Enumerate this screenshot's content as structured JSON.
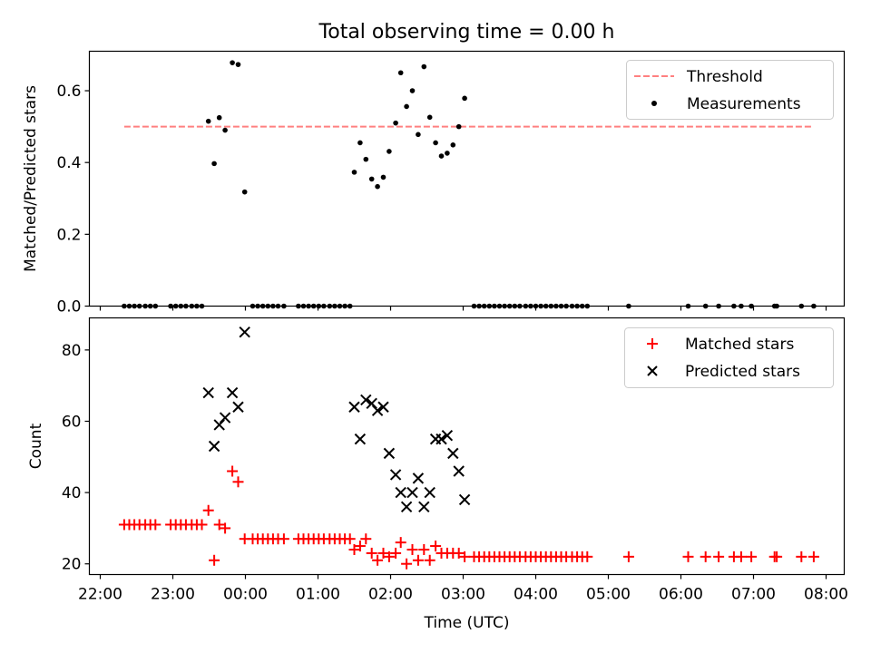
{
  "figure": {
    "title": "Total observing time = 0.00 h"
  },
  "chart_data": [
    {
      "type": "scatter",
      "ylabel": "Matched/Predicted stars",
      "xlabel": "",
      "xlim": [
        -0.15,
        10.25
      ],
      "ylim": [
        0.0,
        0.71
      ],
      "x_ticks": [
        0,
        1,
        2,
        3,
        4,
        5,
        6,
        7,
        8,
        9,
        10
      ],
      "x_tick_labels": [
        "22:00",
        "23:00",
        "00:00",
        "01:00",
        "02:00",
        "03:00",
        "04:00",
        "05:00",
        "06:00",
        "07:00",
        "08:00"
      ],
      "y_ticks": [
        0.0,
        0.2,
        0.4,
        0.6
      ],
      "y_tick_labels": [
        "0.0",
        "0.2",
        "0.4",
        "0.6"
      ],
      "legend_position": "top-right",
      "threshold": {
        "name": "Threshold",
        "value": 0.5,
        "x_range": [
          0.33,
          9.83
        ],
        "color": "#ff8080"
      },
      "series": [
        {
          "name": "Measurements",
          "color": "#000000",
          "marker": "dot",
          "points": [
            [
              0.33,
              0
            ],
            [
              0.4,
              0
            ],
            [
              0.47,
              0
            ],
            [
              0.54,
              0
            ],
            [
              0.62,
              0
            ],
            [
              0.69,
              0
            ],
            [
              0.76,
              0
            ],
            [
              0.97,
              0
            ],
            [
              1.04,
              0
            ],
            [
              1.11,
              0
            ],
            [
              1.18,
              0
            ],
            [
              1.26,
              0
            ],
            [
              1.33,
              0
            ],
            [
              1.4,
              0
            ],
            [
              1.49,
              0.515
            ],
            [
              1.57,
              0.397
            ],
            [
              1.64,
              0.525
            ],
            [
              1.72,
              0.49
            ],
            [
              1.82,
              0.678
            ],
            [
              1.9,
              0.673
            ],
            [
              1.99,
              0.318
            ],
            [
              2.1,
              0
            ],
            [
              2.17,
              0
            ],
            [
              2.24,
              0
            ],
            [
              2.31,
              0
            ],
            [
              2.38,
              0
            ],
            [
              2.45,
              0
            ],
            [
              2.53,
              0
            ],
            [
              2.73,
              0
            ],
            [
              2.8,
              0
            ],
            [
              2.87,
              0
            ],
            [
              2.94,
              0
            ],
            [
              3.01,
              0
            ],
            [
              3.08,
              0
            ],
            [
              3.16,
              0
            ],
            [
              3.23,
              0
            ],
            [
              3.3,
              0
            ],
            [
              3.37,
              0
            ],
            [
              3.44,
              0
            ],
            [
              3.5,
              0.373
            ],
            [
              3.58,
              0.455
            ],
            [
              3.66,
              0.409
            ],
            [
              3.74,
              0.354
            ],
            [
              3.82,
              0.333
            ],
            [
              3.9,
              0.359
            ],
            [
              3.98,
              0.431
            ],
            [
              4.07,
              0.51
            ],
            [
              4.14,
              0.65
            ],
            [
              4.22,
              0.556
            ],
            [
              4.3,
              0.6
            ],
            [
              4.38,
              0.478
            ],
            [
              4.46,
              0.667
            ],
            [
              4.54,
              0.526
            ],
            [
              4.62,
              0.455
            ],
            [
              4.7,
              0.418
            ],
            [
              4.78,
              0.426
            ],
            [
              4.86,
              0.449
            ],
            [
              4.94,
              0.5
            ],
            [
              5.02,
              0.579
            ],
            [
              5.15,
              0
            ],
            [
              5.22,
              0
            ],
            [
              5.29,
              0
            ],
            [
              5.36,
              0
            ],
            [
              5.43,
              0
            ],
            [
              5.5,
              0
            ],
            [
              5.57,
              0
            ],
            [
              5.64,
              0
            ],
            [
              5.71,
              0
            ],
            [
              5.78,
              0
            ],
            [
              5.86,
              0
            ],
            [
              5.93,
              0
            ],
            [
              6.0,
              0
            ],
            [
              6.07,
              0
            ],
            [
              6.14,
              0
            ],
            [
              6.21,
              0
            ],
            [
              6.28,
              0
            ],
            [
              6.35,
              0
            ],
            [
              6.42,
              0
            ],
            [
              6.5,
              0
            ],
            [
              6.57,
              0
            ],
            [
              6.64,
              0
            ],
            [
              6.71,
              0
            ],
            [
              7.28,
              0
            ],
            [
              8.1,
              0
            ],
            [
              8.34,
              0
            ],
            [
              8.52,
              0
            ],
            [
              8.73,
              0
            ],
            [
              8.83,
              0
            ],
            [
              8.97,
              0
            ],
            [
              9.29,
              0
            ],
            [
              9.32,
              0
            ],
            [
              9.66,
              0
            ],
            [
              9.83,
              0
            ]
          ]
        }
      ]
    },
    {
      "type": "scatter",
      "ylabel": "Count",
      "xlabel": "Time (UTC)",
      "xlim": [
        -0.15,
        10.25
      ],
      "ylim": [
        17,
        89
      ],
      "x_ticks": [
        0,
        1,
        2,
        3,
        4,
        5,
        6,
        7,
        8,
        9,
        10
      ],
      "x_tick_labels": [
        "22:00",
        "23:00",
        "00:00",
        "01:00",
        "02:00",
        "03:00",
        "04:00",
        "05:00",
        "06:00",
        "07:00",
        "08:00"
      ],
      "y_ticks": [
        20,
        40,
        60,
        80
      ],
      "y_tick_labels": [
        "20",
        "40",
        "60",
        "80"
      ],
      "legend_position": "top-right",
      "series": [
        {
          "name": "Matched stars",
          "color": "#ff0000",
          "marker": "plus",
          "points": [
            [
              0.33,
              31
            ],
            [
              0.4,
              31
            ],
            [
              0.47,
              31
            ],
            [
              0.54,
              31
            ],
            [
              0.62,
              31
            ],
            [
              0.69,
              31
            ],
            [
              0.76,
              31
            ],
            [
              0.97,
              31
            ],
            [
              1.04,
              31
            ],
            [
              1.11,
              31
            ],
            [
              1.18,
              31
            ],
            [
              1.26,
              31
            ],
            [
              1.33,
              31
            ],
            [
              1.4,
              31
            ],
            [
              1.49,
              35
            ],
            [
              1.57,
              21
            ],
            [
              1.64,
              31
            ],
            [
              1.72,
              30
            ],
            [
              1.82,
              46
            ],
            [
              1.9,
              43
            ],
            [
              1.99,
              27
            ],
            [
              2.1,
              27
            ],
            [
              2.17,
              27
            ],
            [
              2.24,
              27
            ],
            [
              2.31,
              27
            ],
            [
              2.38,
              27
            ],
            [
              2.45,
              27
            ],
            [
              2.53,
              27
            ],
            [
              2.73,
              27
            ],
            [
              2.8,
              27
            ],
            [
              2.87,
              27
            ],
            [
              2.94,
              27
            ],
            [
              3.01,
              27
            ],
            [
              3.08,
              27
            ],
            [
              3.16,
              27
            ],
            [
              3.23,
              27
            ],
            [
              3.3,
              27
            ],
            [
              3.37,
              27
            ],
            [
              3.44,
              27
            ],
            [
              3.5,
              24
            ],
            [
              3.58,
              25
            ],
            [
              3.66,
              27
            ],
            [
              3.74,
              23
            ],
            [
              3.82,
              21
            ],
            [
              3.9,
              23
            ],
            [
              3.98,
              22
            ],
            [
              4.07,
              23
            ],
            [
              4.14,
              26
            ],
            [
              4.22,
              20
            ],
            [
              4.3,
              24
            ],
            [
              4.38,
              21
            ],
            [
              4.46,
              24
            ],
            [
              4.54,
              21
            ],
            [
              4.62,
              25
            ],
            [
              4.7,
              23
            ],
            [
              4.78,
              23
            ],
            [
              4.86,
              23
            ],
            [
              4.94,
              23
            ],
            [
              5.02,
              22
            ],
            [
              5.15,
              22
            ],
            [
              5.22,
              22
            ],
            [
              5.29,
              22
            ],
            [
              5.36,
              22
            ],
            [
              5.43,
              22
            ],
            [
              5.5,
              22
            ],
            [
              5.57,
              22
            ],
            [
              5.64,
              22
            ],
            [
              5.71,
              22
            ],
            [
              5.78,
              22
            ],
            [
              5.86,
              22
            ],
            [
              5.93,
              22
            ],
            [
              6.0,
              22
            ],
            [
              6.07,
              22
            ],
            [
              6.14,
              22
            ],
            [
              6.21,
              22
            ],
            [
              6.28,
              22
            ],
            [
              6.35,
              22
            ],
            [
              6.42,
              22
            ],
            [
              6.5,
              22
            ],
            [
              6.57,
              22
            ],
            [
              6.64,
              22
            ],
            [
              6.71,
              22
            ],
            [
              7.28,
              22
            ],
            [
              8.1,
              22
            ],
            [
              8.34,
              22
            ],
            [
              8.52,
              22
            ],
            [
              8.73,
              22
            ],
            [
              8.83,
              22
            ],
            [
              8.97,
              22
            ],
            [
              9.29,
              22
            ],
            [
              9.32,
              22
            ],
            [
              9.66,
              22
            ],
            [
              9.83,
              22
            ]
          ]
        },
        {
          "name": "Predicted stars",
          "color": "#000000",
          "marker": "x",
          "points": [
            [
              1.49,
              68
            ],
            [
              1.57,
              53
            ],
            [
              1.64,
              59
            ],
            [
              1.72,
              61
            ],
            [
              1.82,
              68
            ],
            [
              1.9,
              64
            ],
            [
              1.99,
              85
            ],
            [
              3.5,
              64
            ],
            [
              3.58,
              55
            ],
            [
              3.66,
              66
            ],
            [
              3.74,
              65
            ],
            [
              3.82,
              63
            ],
            [
              3.9,
              64
            ],
            [
              3.98,
              51
            ],
            [
              4.07,
              45
            ],
            [
              4.14,
              40
            ],
            [
              4.22,
              36
            ],
            [
              4.3,
              40
            ],
            [
              4.38,
              44
            ],
            [
              4.46,
              36
            ],
            [
              4.54,
              40
            ],
            [
              4.62,
              55
            ],
            [
              4.7,
              55
            ],
            [
              4.78,
              56
            ],
            [
              4.86,
              51
            ],
            [
              4.94,
              46
            ],
            [
              5.02,
              38
            ]
          ]
        }
      ]
    }
  ]
}
